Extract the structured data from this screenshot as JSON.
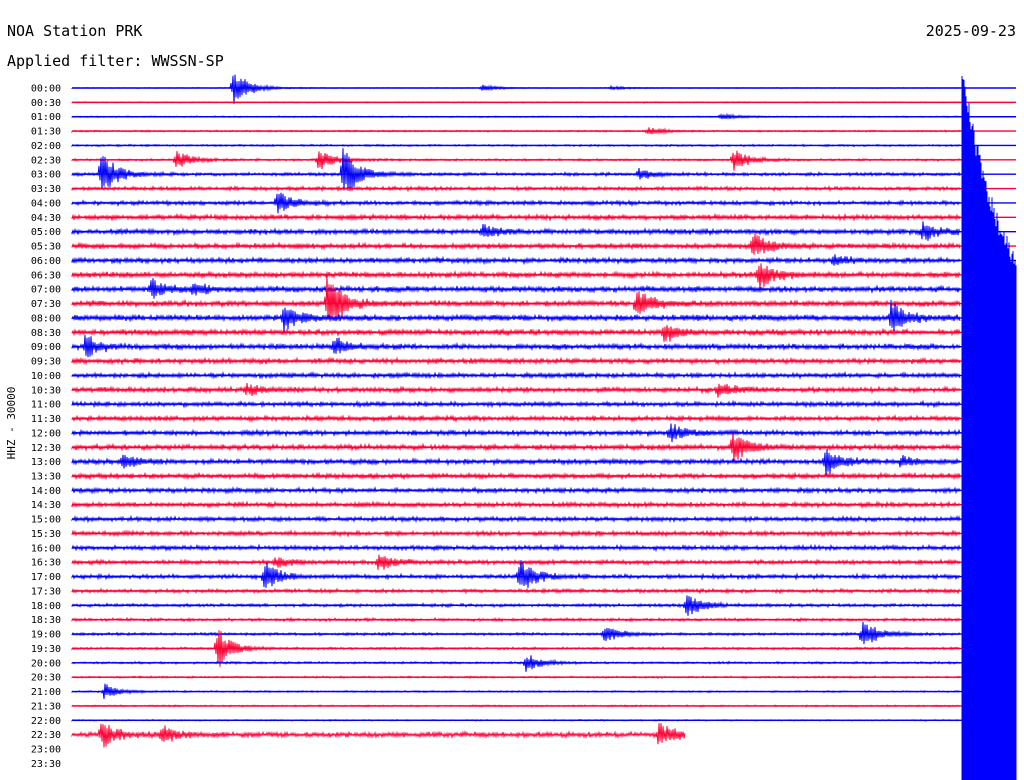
{
  "header": {
    "station": "NOA Station PRK",
    "date": "2025-09-23",
    "filter": "Applied filter: WWSSN-SP"
  },
  "chart_data": {
    "type": "line",
    "title": "NOA Station PRK",
    "ylabel": "HHZ - 30000",
    "colors": {
      "even": "#0000ff",
      "odd": "#ff0033"
    },
    "time_labels": [
      "00:00",
      "00:30",
      "01:00",
      "01:30",
      "02:00",
      "02:30",
      "03:00",
      "03:30",
      "04:00",
      "04:30",
      "05:00",
      "05:30",
      "06:00",
      "06:30",
      "07:00",
      "07:30",
      "08:00",
      "08:30",
      "09:00",
      "09:30",
      "10:00",
      "10:30",
      "11:00",
      "11:30",
      "12:00",
      "12:30",
      "13:00",
      "13:30",
      "14:00",
      "14:30",
      "15:00",
      "15:30",
      "16:00",
      "16:30",
      "17:00",
      "17:30",
      "18:00",
      "18:30",
      "19:00",
      "19:30",
      "20:00",
      "20:30",
      "21:00",
      "21:30",
      "22:00",
      "22:30",
      "23:00",
      "23:30"
    ],
    "noise_level": [
      0.3,
      0.4,
      0.5,
      0.6,
      0.7,
      0.8,
      1.2,
      1.4,
      1.6,
      1.9,
      2.0,
      2.0,
      2.0,
      2.1,
      2.2,
      2.2,
      2.3,
      2.2,
      2.1,
      2.0,
      1.8,
      1.9,
      1.8,
      1.8,
      1.9,
      2.0,
      1.9,
      1.9,
      1.8,
      1.8,
      1.7,
      1.7,
      1.7,
      1.6,
      1.6,
      1.4,
      1.2,
      1.1,
      1.0,
      0.9,
      0.8,
      0.7,
      0.6,
      0.6,
      0.5,
      2.0,
      0.0,
      0.0
    ],
    "x_range_minutes": [
      0,
      30
    ],
    "data_end": {
      "row": 45,
      "minute": 19.5
    },
    "events": [
      {
        "row": 0,
        "minute": 5.1,
        "amplitude": 22
      },
      {
        "row": 0,
        "minute": 13.0,
        "amplitude": 4
      },
      {
        "row": 0,
        "minute": 17.1,
        "amplitude": 2
      },
      {
        "row": 2,
        "minute": 20.6,
        "amplitude": 4
      },
      {
        "row": 3,
        "minute": 18.3,
        "amplitude": 4
      },
      {
        "row": 5,
        "minute": 3.3,
        "amplitude": 10
      },
      {
        "row": 5,
        "minute": 7.8,
        "amplitude": 12
      },
      {
        "row": 5,
        "minute": 21.0,
        "amplitude": 12
      },
      {
        "row": 6,
        "minute": 0.9,
        "amplitude": 28
      },
      {
        "row": 6,
        "minute": 8.6,
        "amplitude": 28
      },
      {
        "row": 6,
        "minute": 18.0,
        "amplitude": 6
      },
      {
        "row": 8,
        "minute": 6.5,
        "amplitude": 12
      },
      {
        "row": 10,
        "minute": 13.0,
        "amplitude": 8
      },
      {
        "row": 10,
        "minute": 27.0,
        "amplitude": 10
      },
      {
        "row": 11,
        "minute": 21.6,
        "amplitude": 14
      },
      {
        "row": 12,
        "minute": 24.2,
        "amplitude": 6
      },
      {
        "row": 13,
        "minute": 21.8,
        "amplitude": 16
      },
      {
        "row": 14,
        "minute": 2.5,
        "amplitude": 10
      },
      {
        "row": 14,
        "minute": 3.8,
        "amplitude": 6
      },
      {
        "row": 15,
        "minute": 8.1,
        "amplitude": 32
      },
      {
        "row": 15,
        "minute": 17.9,
        "amplitude": 16
      },
      {
        "row": 16,
        "minute": 6.7,
        "amplitude": 14
      },
      {
        "row": 16,
        "minute": 26.0,
        "amplitude": 18
      },
      {
        "row": 17,
        "minute": 18.8,
        "amplitude": 10
      },
      {
        "row": 18,
        "minute": 0.4,
        "amplitude": 12
      },
      {
        "row": 18,
        "minute": 8.3,
        "amplitude": 10
      },
      {
        "row": 21,
        "minute": 5.5,
        "amplitude": 6
      },
      {
        "row": 21,
        "minute": 20.5,
        "amplitude": 8
      },
      {
        "row": 24,
        "minute": 19.0,
        "amplitude": 10
      },
      {
        "row": 25,
        "minute": 21.0,
        "amplitude": 16
      },
      {
        "row": 26,
        "minute": 1.6,
        "amplitude": 8
      },
      {
        "row": 26,
        "minute": 23.9,
        "amplitude": 16
      },
      {
        "row": 26,
        "minute": 26.3,
        "amplitude": 6
      },
      {
        "row": 33,
        "minute": 9.7,
        "amplitude": 10
      },
      {
        "row": 33,
        "minute": 6.4,
        "amplitude": 6
      },
      {
        "row": 34,
        "minute": 6.1,
        "amplitude": 16
      },
      {
        "row": 34,
        "minute": 14.2,
        "amplitude": 18
      },
      {
        "row": 36,
        "minute": 19.5,
        "amplitude": 14
      },
      {
        "row": 38,
        "minute": 16.9,
        "amplitude": 10
      },
      {
        "row": 38,
        "minute": 25.1,
        "amplitude": 16
      },
      {
        "row": 39,
        "minute": 4.6,
        "amplitude": 22
      },
      {
        "row": 40,
        "minute": 14.4,
        "amplitude": 10
      },
      {
        "row": 42,
        "minute": 1.0,
        "amplitude": 8
      },
      {
        "row": 45,
        "minute": 0.9,
        "amplitude": 14
      },
      {
        "row": 45,
        "minute": 2.8,
        "amplitude": 10
      },
      {
        "row": 45,
        "minute": 18.6,
        "amplitude": 14
      }
    ]
  }
}
